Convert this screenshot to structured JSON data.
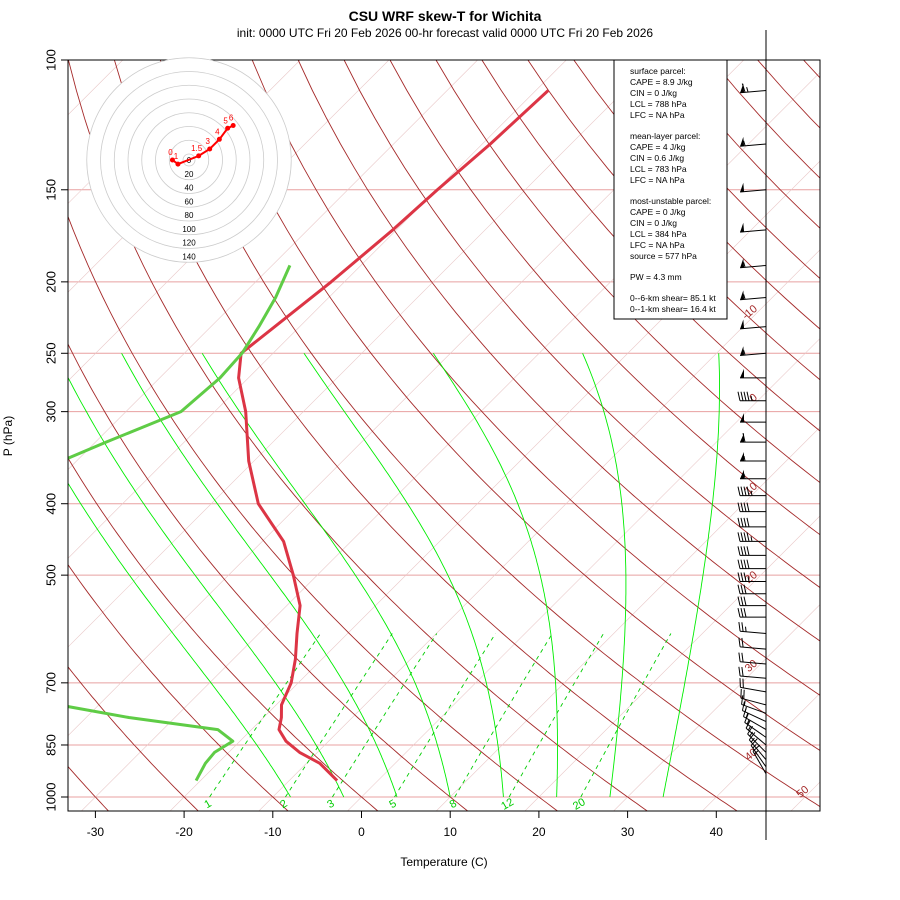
{
  "title": "CSU WRF skew-T for Wichita",
  "subtitle": "init: 0000 UTC Fri 20 Feb 2026     00-hr forecast valid 0000 UTC Fri 20 Feb 2026",
  "chart_data": {
    "type": "skew-t",
    "title": "CSU WRF skew-T for Wichita",
    "xlabel": "Temperature (C)",
    "ylabel": "P (hPa)",
    "xlim": [
      -33,
      52
    ],
    "ylim": [
      1050,
      100
    ],
    "y_scale": "log",
    "x_ticks": [
      -30,
      -20,
      -10,
      0,
      10,
      20,
      30,
      40
    ],
    "pressure_ticks": [
      100,
      150,
      200,
      250,
      300,
      400,
      500,
      700,
      850,
      1000
    ],
    "grid": true,
    "temperature": {
      "name": "temperature",
      "color": "#dc3545",
      "pressure": [
        950,
        900,
        870,
        840,
        810,
        780,
        750,
        700,
        650,
        600,
        550,
        500,
        450,
        400,
        350,
        300,
        270,
        250,
        230,
        200,
        170,
        150,
        130,
        110
      ],
      "temp_c": [
        -4.6,
        -8.5,
        -12.0,
        -14.8,
        -16.9,
        -18.0,
        -19.4,
        -20.8,
        -23.0,
        -25.7,
        -28.5,
        -32.7,
        -37.6,
        -44.7,
        -50.6,
        -56.5,
        -61.1,
        -63.6,
        -62.8,
        -61.5,
        -60.4,
        -59.9,
        -59.1,
        -58.6
      ]
    },
    "dewpoint": {
      "name": "dewpoint",
      "color": "#5fcc46",
      "pressure": [
        950,
        900,
        870,
        840,
        810,
        780,
        750,
        700,
        650,
        600,
        560,
        500,
        470,
        430,
        400,
        380,
        350,
        330,
        300,
        270,
        250,
        230,
        210,
        190
      ],
      "temp_d_c": [
        -20.5,
        -21.4,
        -21.6,
        -20.8,
        -23.8,
        -35.2,
        -44.5,
        -52.2,
        -53.7,
        -58.2,
        -62.2,
        -72.0,
        -74.8,
        -75.0,
        -75.5,
        -74.8,
        -71.7,
        -68.8,
        -63.8,
        -63.2,
        -63.5,
        -64.6,
        -66.0,
        -68.0
      ]
    },
    "mixing_ratio_labels": [
      "1",
      "2",
      "3",
      "5",
      "8",
      "12",
      "20"
    ],
    "isotherm_labels": [
      "-10",
      "0",
      "10",
      "20",
      "30",
      "40",
      "50"
    ],
    "hodograph": {
      "ring_labels": [
        "0",
        "20",
        "40",
        "60",
        "80",
        "100",
        "120",
        "140"
      ],
      "color": "#ff0000",
      "points": [
        {
          "label": "0",
          "u": -12,
          "v": 0
        },
        {
          "label": "1",
          "u": -8,
          "v": -3
        },
        {
          "label": "1.5",
          "u": 7,
          "v": 3
        },
        {
          "label": "3",
          "u": 15,
          "v": 8
        },
        {
          "label": "4",
          "u": 22,
          "v": 15
        },
        {
          "label": "5",
          "u": 28,
          "v": 23
        },
        {
          "label": "6",
          "u": 32,
          "v": 25
        }
      ]
    },
    "wind_barbs": {
      "pressure": [
        110,
        130,
        150,
        170,
        190,
        210,
        230,
        250,
        270,
        290,
        310,
        330,
        350,
        370,
        390,
        410,
        430,
        450,
        470,
        490,
        510,
        530,
        550,
        570,
        600,
        630,
        660,
        690,
        720,
        750,
        770,
        790,
        810,
        830,
        850,
        870,
        890,
        910,
        930
      ],
      "speed_kt": [
        65,
        55,
        50,
        50,
        55,
        55,
        50,
        55,
        50,
        45,
        50,
        60,
        55,
        55,
        45,
        40,
        40,
        45,
        40,
        40,
        35,
        30,
        30,
        30,
        25,
        20,
        20,
        20,
        20,
        20,
        15,
        15,
        15,
        15,
        15,
        15,
        15,
        15,
        15
      ],
      "direction_deg": [
        265,
        265,
        265,
        265,
        265,
        265,
        265,
        265,
        270,
        270,
        270,
        270,
        270,
        270,
        270,
        270,
        270,
        270,
        270,
        270,
        270,
        270,
        270,
        270,
        275,
        275,
        275,
        275,
        280,
        285,
        290,
        295,
        300,
        305,
        310,
        315,
        320,
        325,
        330
      ]
    }
  },
  "info_box": {
    "surface_header": "surface parcel:",
    "surface_cape": "CAPE = 8.9 J/kg",
    "surface_cin": "CIN = 0 J/kg",
    "surface_lcl": "LCL = 788 hPa",
    "surface_lfc": "LFC = NA hPa",
    "ml_header": "mean-layer parcel:",
    "ml_cape": "CAPE = 4 J/kg",
    "ml_cin": "CIN = 0.6 J/kg",
    "ml_lcl": "LCL = 783 hPa",
    "ml_lfc": "LFC = NA hPa",
    "mu_header": "most-unstable parcel:",
    "mu_cape": "CAPE = 0 J/kg",
    "mu_cin": "CIN = 0 J/kg",
    "mu_lcl": "LCL = 384 hPa",
    "mu_lfc": "LFC = NA hPa",
    "mu_source": "source = 577 hPa",
    "pw": "PW =  4.3 mm",
    "shear_06": "0--6-km shear= 85.1 kt",
    "shear_01": "0--1-km shear= 16.4 kt"
  },
  "colors": {
    "temperature": "#dc3545",
    "dewpoint": "#5fcc46",
    "isotherm": "#a52a2a",
    "dry_adiabat": "#a52a2a",
    "moist_adiabat": "#00ee00",
    "mixing_ratio": "#00cc00",
    "pressure_line": "#e8a0a0",
    "hodograph": "#ff0000"
  }
}
